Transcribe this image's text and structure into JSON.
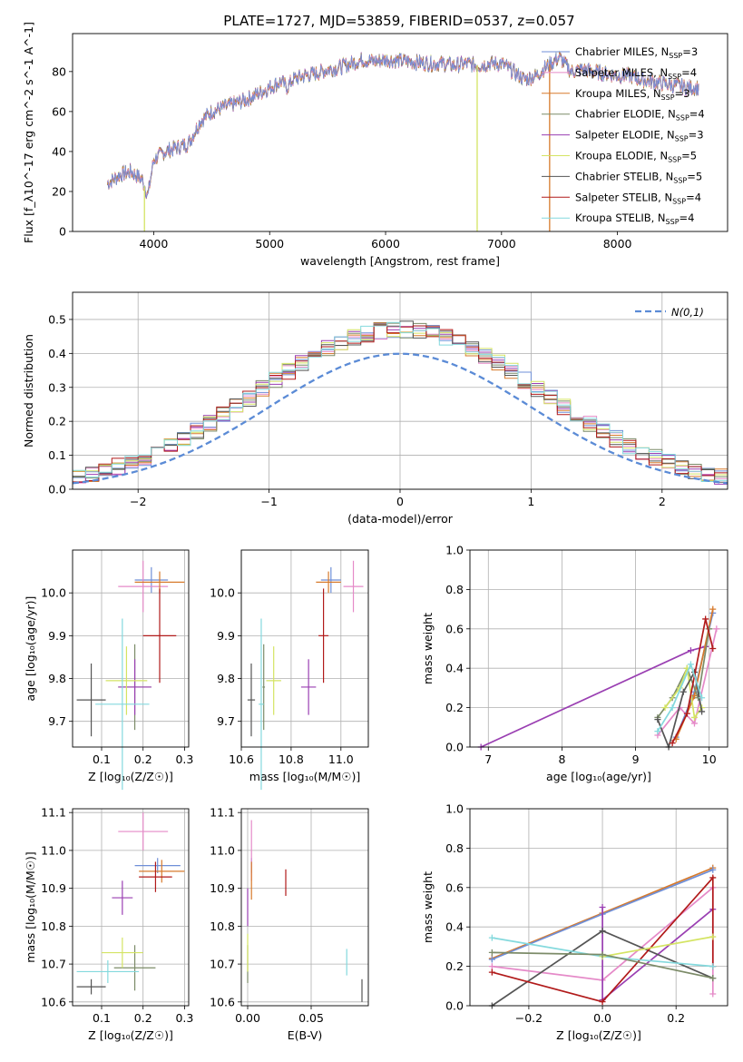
{
  "figure": {
    "title": "PLATE=1727, MJD=53859, FIBERID=0537, z=0.057",
    "colors": {
      "Chabrier MILES": "#6f8fd8",
      "Salpeter MILES": "#e58ac8",
      "Kroupa MILES": "#d77a2b",
      "Chabrier ELODIE": "#7c8b68",
      "Salpeter ELODIE": "#9a3fb2",
      "Kroupa ELODIE": "#d4e463",
      "Chabrier STELIB": "#555555",
      "Salpeter STELIB": "#b11a1a",
      "Kroupa STELIB": "#84d9dd"
    }
  },
  "chart_data": [
    {
      "id": "spectrum",
      "type": "line",
      "xlabel": "wavelength [Angstrom, rest frame]",
      "ylabel": "Flux [f_λ10^-17 erg cm^-2 s^-1 A^-1]",
      "xlim": [
        3300,
        8950
      ],
      "ylim": [
        0,
        99
      ],
      "xticks": [
        4000,
        5000,
        6000,
        7000,
        8000
      ],
      "yticks": [
        0,
        20,
        40,
        60,
        80
      ],
      "grid": false,
      "legend": "top-right",
      "series_names": [
        "Chabrier MILES, N_SSP=3",
        "Salpeter MILES, N_SSP=4",
        "Kroupa MILES, N_SSP=3",
        "Chabrier ELODIE, N_SSP=4",
        "Salpeter ELODIE, N_SSP=3",
        "Kroupa ELODIE, N_SSP=5",
        "Chabrier STELIB, N_SSP=5",
        "Salpeter STELIB, N_SSP=4",
        "Kroupa STELIB, N_SSP=4"
      ],
      "continuum": [
        [
          3600,
          24
        ],
        [
          3700,
          28
        ],
        [
          3800,
          30
        ],
        [
          3900,
          26
        ],
        [
          3950,
          18
        ],
        [
          4000,
          36
        ],
        [
          4100,
          40
        ],
        [
          4200,
          42
        ],
        [
          4300,
          44
        ],
        [
          4400,
          55
        ],
        [
          4500,
          60
        ],
        [
          4600,
          62
        ],
        [
          4700,
          64
        ],
        [
          4800,
          66
        ],
        [
          4900,
          69
        ],
        [
          5000,
          72
        ],
        [
          5100,
          75
        ],
        [
          5150,
          72
        ],
        [
          5200,
          76
        ],
        [
          5300,
          78
        ],
        [
          5400,
          79
        ],
        [
          5500,
          81
        ],
        [
          5600,
          82
        ],
        [
          5700,
          84
        ],
        [
          5800,
          86
        ],
        [
          5900,
          85
        ],
        [
          6000,
          86
        ],
        [
          6200,
          85
        ],
        [
          6400,
          84
        ],
        [
          6500,
          84
        ],
        [
          6600,
          83
        ],
        [
          6700,
          84
        ],
        [
          6800,
          83
        ],
        [
          6900,
          84
        ],
        [
          7000,
          84
        ],
        [
          7100,
          80
        ],
        [
          7200,
          76
        ],
        [
          7300,
          78
        ],
        [
          7400,
          83
        ],
        [
          7500,
          87
        ],
        [
          7600,
          80
        ],
        [
          7700,
          81
        ],
        [
          7800,
          80
        ],
        [
          7900,
          79
        ],
        [
          8000,
          78
        ],
        [
          8100,
          78
        ],
        [
          8200,
          76
        ],
        [
          8300,
          75
        ],
        [
          8400,
          74
        ],
        [
          8500,
          73
        ],
        [
          8600,
          72
        ],
        [
          8700,
          72
        ]
      ],
      "drops_to_zero_at": [
        3920,
        6790,
        7415
      ]
    },
    {
      "id": "residuals",
      "type": "histogram",
      "xlabel": "(data-model)/error",
      "ylabel": "Normed distribution",
      "xlim": [
        -2.5,
        2.5
      ],
      "ylim": [
        0,
        0.58
      ],
      "xticks": [
        -2,
        -1,
        0,
        1,
        2
      ],
      "yticks": [
        0.0,
        0.1,
        0.2,
        0.3,
        0.4,
        0.5
      ],
      "grid": true,
      "legend": "top-right",
      "reference_label": "N(0,1)",
      "reference_color": "#5b8bd6",
      "bin_width": 0.1
    },
    {
      "id": "z-age",
      "type": "errorbar",
      "xlabel": "Z [log10(Z/Z_sun)]",
      "ylabel": "age [log10(age/yr)]",
      "xlim": [
        0.03,
        0.31
      ],
      "ylim": [
        9.64,
        10.1
      ],
      "xticks": [
        0.1,
        0.2,
        0.3
      ],
      "yticks": [
        9.7,
        9.8,
        9.9,
        10.0
      ],
      "grid": true,
      "points": [
        {
          "model": "Chabrier MILES",
          "x": 0.22,
          "y": 10.03,
          "xerr": 0.04,
          "yerr": 0.03
        },
        {
          "model": "Salpeter MILES",
          "x": 0.2,
          "y": 10.015,
          "xerr": 0.06,
          "yerr": 0.06
        },
        {
          "model": "Kroupa MILES",
          "x": 0.24,
          "y": 10.025,
          "xerr": 0.06,
          "yerr": 0.025
        },
        {
          "model": "Chabrier ELODIE",
          "x": 0.18,
          "y": 9.78,
          "xerr": 0.04,
          "yerr": 0.1
        },
        {
          "model": "Salpeter ELODIE",
          "x": 0.18,
          "y": 9.78,
          "xerr": 0.04,
          "yerr": 0.065
        },
        {
          "model": "Kroupa ELODIE",
          "x": 0.16,
          "y": 9.795,
          "xerr": 0.05,
          "yerr": 0.08
        },
        {
          "model": "Chabrier STELIB",
          "x": 0.075,
          "y": 9.75,
          "xerr": 0.035,
          "yerr": 0.085
        },
        {
          "model": "Salpeter STELIB",
          "x": 0.24,
          "y": 9.9,
          "xerr": 0.04,
          "yerr": 0.11
        },
        {
          "model": "Kroupa STELIB",
          "x": 0.15,
          "y": 9.74,
          "xerr": 0.065,
          "yerr": 0.2
        }
      ]
    },
    {
      "id": "mass-age",
      "type": "errorbar",
      "xlabel": "mass [log10(M/M_sun)]",
      "ylabel": "",
      "xlim": [
        10.6,
        11.11
      ],
      "ylim": [
        9.64,
        10.1
      ],
      "xticks": [
        10.6,
        10.8,
        11.0
      ],
      "yticks": [
        9.7,
        9.8,
        9.9,
        10.0
      ],
      "grid": true,
      "points": [
        {
          "model": "Chabrier MILES",
          "x": 10.96,
          "y": 10.03,
          "xerr": 0.04,
          "yerr": 0.03
        },
        {
          "model": "Salpeter MILES",
          "x": 11.05,
          "y": 10.015,
          "xerr": 0.04,
          "yerr": 0.06
        },
        {
          "model": "Kroupa MILES",
          "x": 10.95,
          "y": 10.025,
          "xerr": 0.05,
          "yerr": 0.025
        },
        {
          "model": "Chabrier ELODIE",
          "x": 10.69,
          "y": 9.78,
          "xerr": 0.005,
          "yerr": 0.1
        },
        {
          "model": "Salpeter ELODIE",
          "x": 10.87,
          "y": 9.78,
          "xerr": 0.03,
          "yerr": 0.065
        },
        {
          "model": "Kroupa ELODIE",
          "x": 10.73,
          "y": 9.795,
          "xerr": 0.03,
          "yerr": 0.08
        },
        {
          "model": "Chabrier STELIB",
          "x": 10.64,
          "y": 9.75,
          "xerr": 0.015,
          "yerr": 0.085
        },
        {
          "model": "Salpeter STELIB",
          "x": 10.93,
          "y": 9.9,
          "xerr": 0.02,
          "yerr": 0.11
        },
        {
          "model": "Kroupa STELIB",
          "x": 10.68,
          "y": 9.74,
          "xerr": 0.01,
          "yerr": 0.2
        }
      ]
    },
    {
      "id": "age-weight",
      "type": "line",
      "xlabel": "age [log10(age/yr)]",
      "ylabel": "mass weight",
      "xlim": [
        6.75,
        10.25
      ],
      "ylim": [
        0,
        1.0
      ],
      "xticks": [
        7,
        8,
        9,
        10
      ],
      "yticks": [
        0.0,
        0.2,
        0.4,
        0.6,
        0.8,
        1.0
      ],
      "grid": true,
      "series": [
        {
          "model": "Salpeter ELODIE",
          "x": [
            6.9,
            9.75,
            9.95
          ],
          "y": [
            0.0,
            0.49,
            0.51
          ]
        },
        {
          "model": "Chabrier MILES",
          "x": [
            9.55,
            9.8,
            10.05
          ],
          "y": [
            0.05,
            0.28,
            0.68
          ]
        },
        {
          "model": "Salpeter MILES",
          "x": [
            9.3,
            9.6,
            9.8,
            10.1
          ],
          "y": [
            0.06,
            0.2,
            0.12,
            0.6
          ]
        },
        {
          "model": "Kroupa MILES",
          "x": [
            9.55,
            9.8,
            10.05
          ],
          "y": [
            0.04,
            0.26,
            0.7
          ]
        },
        {
          "model": "Chabrier ELODIE",
          "x": [
            9.3,
            9.5,
            9.7,
            9.85,
            10.0
          ],
          "y": [
            0.15,
            0.25,
            0.4,
            0.25,
            0.6
          ]
        },
        {
          "model": "Kroupa ELODIE",
          "x": [
            9.4,
            9.6,
            9.7,
            9.8,
            9.9
          ],
          "y": [
            0.2,
            0.3,
            0.4,
            0.15,
            0.2
          ]
        },
        {
          "model": "Chabrier STELIB",
          "x": [
            9.3,
            9.45,
            9.65,
            9.8,
            9.9
          ],
          "y": [
            0.14,
            0.0,
            0.28,
            0.38,
            0.18
          ]
        },
        {
          "model": "Salpeter STELIB",
          "x": [
            9.5,
            9.7,
            9.95,
            10.05
          ],
          "y": [
            0.02,
            0.17,
            0.65,
            0.5
          ]
        },
        {
          "model": "Kroupa STELIB",
          "x": [
            9.3,
            9.5,
            9.75,
            9.9
          ],
          "y": [
            0.08,
            0.2,
            0.42,
            0.25
          ]
        }
      ]
    },
    {
      "id": "z-mass",
      "type": "errorbar",
      "xlabel": "Z [log10(Z/Z_sun)]",
      "ylabel": "mass [log10(M/M_sun)]",
      "xlim": [
        0.03,
        0.31
      ],
      "ylim": [
        10.59,
        11.11
      ],
      "xticks": [
        0.1,
        0.2,
        0.3
      ],
      "yticks": [
        10.6,
        10.7,
        10.8,
        10.9,
        11.0,
        11.1
      ],
      "grid": true,
      "points": [
        {
          "model": "Chabrier MILES",
          "x": 0.235,
          "y": 10.96,
          "xerr": 0.055,
          "yerr": 0.02
        },
        {
          "model": "Salpeter MILES",
          "x": 0.2,
          "y": 11.05,
          "xerr": 0.06,
          "yerr": 0.05
        },
        {
          "model": "Kroupa MILES",
          "x": 0.245,
          "y": 10.945,
          "xerr": 0.055,
          "yerr": 0.03
        },
        {
          "model": "Chabrier ELODIE",
          "x": 0.18,
          "y": 10.69,
          "xerr": 0.05,
          "yerr": 0.06
        },
        {
          "model": "Salpeter ELODIE",
          "x": 0.15,
          "y": 10.875,
          "xerr": 0.025,
          "yerr": 0.045
        },
        {
          "model": "Kroupa ELODIE",
          "x": 0.15,
          "y": 10.73,
          "xerr": 0.05,
          "yerr": 0.04
        },
        {
          "model": "Chabrier STELIB",
          "x": 0.075,
          "y": 10.64,
          "xerr": 0.035,
          "yerr": 0.02
        },
        {
          "model": "Salpeter STELIB",
          "x": 0.23,
          "y": 10.93,
          "xerr": 0.04,
          "yerr": 0.04
        },
        {
          "model": "Kroupa STELIB",
          "x": 0.115,
          "y": 10.68,
          "xerr": 0.075,
          "yerr": 0.03
        }
      ]
    },
    {
      "id": "ebv-mass",
      "type": "errorbar",
      "xlabel": "E(B-V)",
      "ylabel": "",
      "xlim": [
        -0.005,
        0.095
      ],
      "ylim": [
        10.59,
        11.11
      ],
      "xticks": [
        0.0,
        0.05
      ],
      "yticks": [
        10.6,
        10.7,
        10.8,
        10.9,
        11.0,
        11.1
      ],
      "grid": true,
      "points": [
        {
          "model": "Chabrier MILES",
          "x": 0.003,
          "y": 10.96,
          "xerr": 0,
          "yerr": 0.02
        },
        {
          "model": "Salpeter MILES",
          "x": 0.003,
          "y": 11.0,
          "xerr": 0,
          "yerr": 0.08
        },
        {
          "model": "Kroupa MILES",
          "x": 0.003,
          "y": 10.92,
          "xerr": 0,
          "yerr": 0.05
        },
        {
          "model": "Chabrier ELODIE",
          "x": 0.0,
          "y": 10.7,
          "xerr": 0,
          "yerr": 0.05
        },
        {
          "model": "Salpeter ELODIE",
          "x": 0.0,
          "y": 10.85,
          "xerr": 0,
          "yerr": 0.05
        },
        {
          "model": "Kroupa ELODIE",
          "x": 0.0,
          "y": 10.73,
          "xerr": 0,
          "yerr": 0.05
        },
        {
          "model": "Chabrier STELIB",
          "x": 0.09,
          "y": 10.63,
          "xerr": 0,
          "yerr": 0.03
        },
        {
          "model": "Salpeter STELIB",
          "x": 0.03,
          "y": 10.915,
          "xerr": 0,
          "yerr": 0.035
        },
        {
          "model": "Kroupa STELIB",
          "x": 0.078,
          "y": 10.705,
          "xerr": 0,
          "yerr": 0.035
        }
      ]
    },
    {
      "id": "z-weight",
      "type": "line",
      "xlabel": "Z [log10(Z/Z_sun)]",
      "ylabel": "mass weight",
      "xlim": [
        -0.36,
        0.34
      ],
      "ylim": [
        0,
        1.0
      ],
      "xticks": [
        -0.2,
        0.0,
        0.2
      ],
      "yticks": [
        0.0,
        0.2,
        0.4,
        0.6,
        0.8,
        1.0
      ],
      "grid": true,
      "series": [
        {
          "model": "Kroupa MILES",
          "x": [
            -0.3,
            0.0,
            0.3
          ],
          "y": [
            0.24,
            0.47,
            0.7
          ]
        },
        {
          "model": "Chabrier MILES",
          "x": [
            -0.3,
            0.0,
            0.3
          ],
          "y": [
            0.235,
            0.465,
            0.69
          ]
        },
        {
          "model": "Salpeter MILES",
          "x": [
            -0.3,
            0.0,
            0.3,
            0.3
          ],
          "y": [
            0.2,
            0.13,
            0.6,
            0.06
          ]
        },
        {
          "model": "Salpeter ELODIE",
          "x": [
            0.0,
            0.0,
            0.3
          ],
          "y": [
            0.5,
            0.03,
            0.49
          ]
        },
        {
          "model": "Chabrier STELIB",
          "x": [
            -0.3,
            0.0,
            0.3
          ],
          "y": [
            0.0,
            0.38,
            0.14
          ]
        },
        {
          "model": "Salpeter STELIB",
          "x": [
            -0.3,
            0.0,
            0.3,
            0.3
          ],
          "y": [
            0.17,
            0.02,
            0.65,
            0.2
          ]
        },
        {
          "model": "Kroupa STELIB",
          "x": [
            -0.3,
            0.0,
            0.3
          ],
          "y": [
            0.345,
            0.25,
            0.2
          ]
        },
        {
          "model": "Kroupa ELODIE",
          "x": [
            0.0,
            0.3
          ],
          "y": [
            0.25,
            0.35
          ]
        },
        {
          "model": "Chabrier ELODIE",
          "x": [
            -0.3,
            0.0,
            0.3
          ],
          "y": [
            0.27,
            0.26,
            0.14
          ]
        }
      ]
    }
  ]
}
